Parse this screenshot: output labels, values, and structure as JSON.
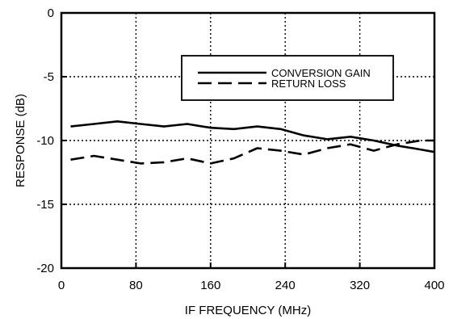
{
  "chart_data": {
    "type": "line",
    "title": "",
    "xlabel": "IF FREQUENCY (MHz)",
    "ylabel": "RESPONSE (dB)",
    "xlim": [
      0,
      400
    ],
    "ylim": [
      -20,
      0
    ],
    "xticks": [
      0,
      80,
      160,
      240,
      320,
      400
    ],
    "yticks": [
      0,
      -5,
      -10,
      -15,
      -20
    ],
    "grid": true,
    "legend_position": "top-right",
    "series": [
      {
        "name": "CONVERSION GAIN",
        "style": "solid",
        "color": "#000000",
        "x": [
          10,
          35,
          60,
          85,
          110,
          135,
          160,
          185,
          210,
          235,
          260,
          285,
          310,
          335,
          360,
          385,
          400
        ],
        "y": [
          -8.9,
          -8.7,
          -8.5,
          -8.7,
          -8.9,
          -8.7,
          -9.0,
          -9.1,
          -8.9,
          -9.1,
          -9.6,
          -9.9,
          -9.7,
          -10.0,
          -10.4,
          -10.7,
          -10.9
        ]
      },
      {
        "name": "RETURN LOSS",
        "style": "dashed",
        "color": "#000000",
        "x": [
          10,
          35,
          60,
          85,
          110,
          135,
          160,
          185,
          210,
          235,
          260,
          285,
          310,
          335,
          360,
          385,
          400
        ],
        "y": [
          -11.5,
          -11.2,
          -11.5,
          -11.8,
          -11.7,
          -11.4,
          -11.8,
          -11.4,
          -10.6,
          -10.8,
          -11.1,
          -10.6,
          -10.3,
          -10.8,
          -10.3,
          -10.0,
          -10.0
        ]
      }
    ]
  }
}
